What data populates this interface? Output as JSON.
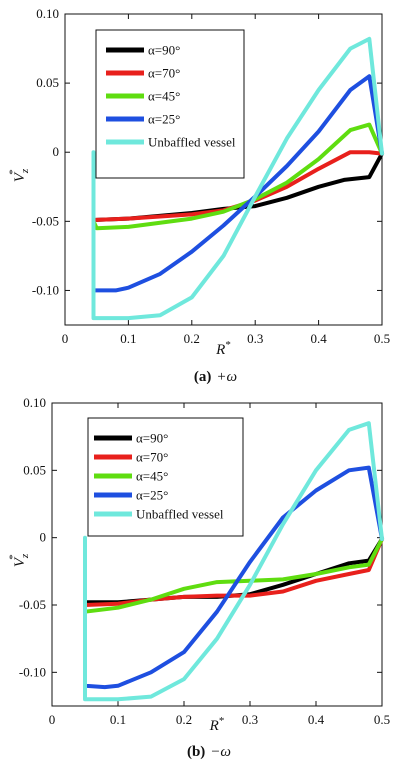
{
  "chart_data": [
    {
      "type": "line",
      "caption_label": "(a)",
      "caption_text": "+ω",
      "xlabel_main": "R",
      "xlabel_sup": "*",
      "ylabel_main": "V",
      "ylabel_sub": "z",
      "ylabel_sup": "*",
      "xlim": [
        0,
        0.5
      ],
      "ylim": [
        -0.125,
        0.1
      ],
      "xticks": [
        {
          "v": 0,
          "label": "0"
        },
        {
          "v": 0.1,
          "label": "0.1"
        },
        {
          "v": 0.2,
          "label": "0.2"
        },
        {
          "v": 0.3,
          "label": "0.3"
        },
        {
          "v": 0.4,
          "label": "0.4"
        },
        {
          "v": 0.5,
          "label": "0.5"
        }
      ],
      "yticks": [
        {
          "v": 0.1,
          "label": "0.10"
        },
        {
          "v": 0.05,
          "label": "0.05"
        },
        {
          "v": 0,
          "label": "0"
        },
        {
          "v": -0.05,
          "label": "-0.05"
        },
        {
          "v": -0.1,
          "label": "-0.10"
        }
      ],
      "legend_position": "top-left",
      "series": [
        {
          "name": "α=90°",
          "color": "#000000",
          "x": [
            0.045,
            0.045,
            0.1,
            0.2,
            0.25,
            0.3,
            0.35,
            0.4,
            0.44,
            0.48,
            0.5
          ],
          "y": [
            -0.055,
            -0.049,
            -0.048,
            -0.044,
            -0.041,
            -0.039,
            -0.033,
            -0.025,
            -0.02,
            -0.018,
            -0.001
          ]
        },
        {
          "name": "α=70°",
          "color": "#e8201c",
          "x": [
            0.045,
            0.045,
            0.1,
            0.2,
            0.25,
            0.3,
            0.35,
            0.4,
            0.45,
            0.48,
            0.5
          ],
          "y": [
            -0.055,
            -0.049,
            -0.048,
            -0.045,
            -0.042,
            -0.035,
            -0.025,
            -0.012,
            0.0,
            0.0,
            -0.001
          ]
        },
        {
          "name": "α=45°",
          "color": "#5fdd10",
          "x": [
            0.045,
            0.045,
            0.05,
            0.1,
            0.2,
            0.25,
            0.3,
            0.35,
            0.4,
            0.45,
            0.48,
            0.5
          ],
          "y": [
            -0.055,
            -0.05,
            -0.055,
            -0.054,
            -0.048,
            -0.043,
            -0.034,
            -0.022,
            -0.005,
            0.016,
            0.02,
            -0.001
          ]
        },
        {
          "name": "α=25°",
          "color": "#1e4fe0",
          "x": [
            0.045,
            0.045,
            0.08,
            0.1,
            0.15,
            0.2,
            0.25,
            0.3,
            0.35,
            0.4,
            0.45,
            0.48,
            0.5
          ],
          "y": [
            -0.098,
            -0.1,
            -0.1,
            -0.098,
            -0.088,
            -0.072,
            -0.053,
            -0.032,
            -0.01,
            0.015,
            0.045,
            0.055,
            -0.001
          ]
        },
        {
          "name": "Unbaffled vessel",
          "color": "#6fe8dc",
          "x": [
            0.045,
            0.045,
            0.05,
            0.1,
            0.15,
            0.2,
            0.25,
            0.3,
            0.35,
            0.4,
            0.45,
            0.48,
            0.5
          ],
          "y": [
            0.0,
            -0.12,
            -0.12,
            -0.12,
            -0.118,
            -0.105,
            -0.075,
            -0.032,
            0.01,
            0.045,
            0.075,
            0.082,
            -0.001
          ]
        }
      ]
    },
    {
      "type": "line",
      "caption_label": "(b)",
      "caption_text": "−ω",
      "xlabel_main": "R",
      "xlabel_sup": "*",
      "ylabel_main": "V",
      "ylabel_sub": "z",
      "ylabel_sup": "*",
      "xlim": [
        0,
        0.5
      ],
      "ylim": [
        -0.125,
        0.1
      ],
      "xticks": [
        {
          "v": 0,
          "label": "0"
        },
        {
          "v": 0.1,
          "label": "0.1"
        },
        {
          "v": 0.2,
          "label": "0.2"
        },
        {
          "v": 0.3,
          "label": "0.3"
        },
        {
          "v": 0.4,
          "label": "0.4"
        },
        {
          "v": 0.5,
          "label": "0.5"
        }
      ],
      "yticks": [
        {
          "v": 0.1,
          "label": "0.10"
        },
        {
          "v": 0.05,
          "label": "0.05"
        },
        {
          "v": 0,
          "label": "0"
        },
        {
          "v": -0.05,
          "label": "-0.05"
        },
        {
          "v": -0.1,
          "label": "-0.10"
        }
      ],
      "legend_position": "top-left",
      "series": [
        {
          "name": "α=90°",
          "color": "#000000",
          "x": [
            0.05,
            0.05,
            0.1,
            0.15,
            0.2,
            0.25,
            0.3,
            0.35,
            0.4,
            0.45,
            0.48,
            0.5
          ],
          "y": [
            -0.055,
            -0.048,
            -0.048,
            -0.046,
            -0.044,
            -0.044,
            -0.042,
            -0.035,
            -0.027,
            -0.019,
            -0.017,
            -0.001
          ]
        },
        {
          "name": "α=70°",
          "color": "#e8201c",
          "x": [
            0.05,
            0.05,
            0.1,
            0.15,
            0.2,
            0.25,
            0.3,
            0.35,
            0.4,
            0.45,
            0.48,
            0.5
          ],
          "y": [
            -0.055,
            -0.05,
            -0.049,
            -0.046,
            -0.044,
            -0.043,
            -0.043,
            -0.04,
            -0.032,
            -0.027,
            -0.024,
            -0.001
          ]
        },
        {
          "name": "α=45°",
          "color": "#5fdd10",
          "x": [
            0.05,
            0.05,
            0.1,
            0.15,
            0.2,
            0.25,
            0.3,
            0.35,
            0.4,
            0.45,
            0.48,
            0.5
          ],
          "y": [
            -0.052,
            -0.055,
            -0.052,
            -0.046,
            -0.038,
            -0.033,
            -0.032,
            -0.031,
            -0.027,
            -0.022,
            -0.02,
            -0.001
          ]
        },
        {
          "name": "α=25°",
          "color": "#1e4fe0",
          "x": [
            0.05,
            0.05,
            0.08,
            0.1,
            0.15,
            0.2,
            0.25,
            0.3,
            0.35,
            0.4,
            0.45,
            0.48,
            0.5
          ],
          "y": [
            -0.108,
            -0.11,
            -0.111,
            -0.11,
            -0.1,
            -0.085,
            -0.055,
            -0.018,
            0.015,
            0.035,
            0.05,
            0.052,
            -0.001
          ]
        },
        {
          "name": "Unbaffled vessel",
          "color": "#6fe8dc",
          "x": [
            0.05,
            0.05,
            0.1,
            0.15,
            0.2,
            0.25,
            0.3,
            0.35,
            0.4,
            0.45,
            0.48,
            0.5
          ],
          "y": [
            0.0,
            -0.12,
            -0.12,
            -0.118,
            -0.105,
            -0.075,
            -0.035,
            0.01,
            0.05,
            0.08,
            0.085,
            -0.001
          ]
        }
      ]
    }
  ]
}
